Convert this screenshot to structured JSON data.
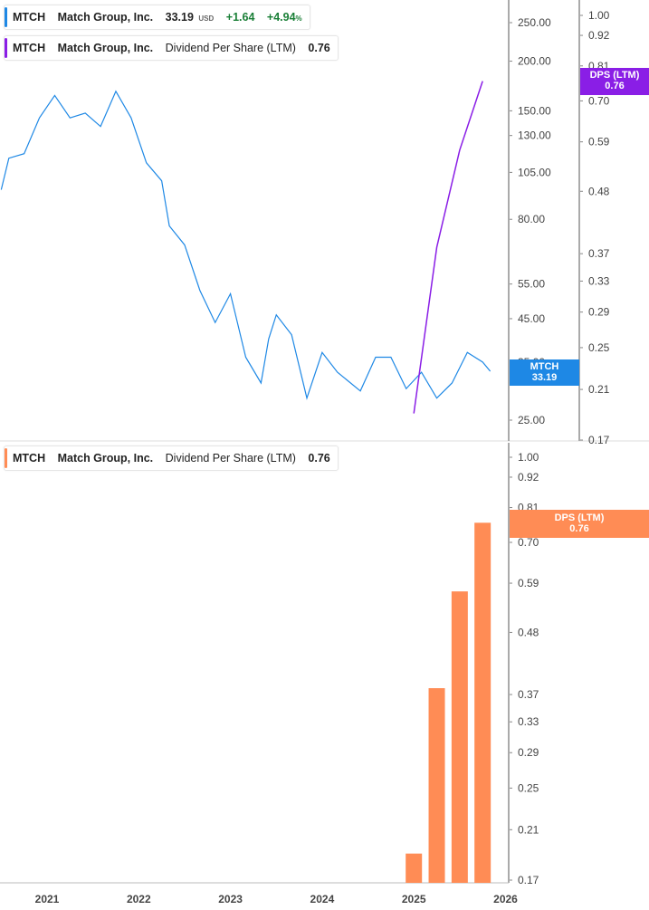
{
  "legend_price": {
    "ticker": "MTCH",
    "company": "Match Group, Inc.",
    "price": "33.19",
    "currency": "USD",
    "change": "+1.64",
    "change_pct": "+4.94",
    "pct_sign": "%"
  },
  "legend_dps_top": {
    "ticker": "MTCH",
    "company": "Match Group, Inc.",
    "metric": "Dividend Per Share (LTM)",
    "value": "0.76"
  },
  "legend_dps_bottom": {
    "ticker": "MTCH",
    "company": "Match Group, Inc.",
    "metric": "Dividend Per Share (LTM)",
    "value": "0.76"
  },
  "badges": {
    "price": {
      "label": "MTCH",
      "value": "33.19"
    },
    "dps_top": {
      "label": "DPS (LTM)",
      "value": "0.76"
    },
    "dps_bottom": {
      "label": "DPS (LTM)",
      "value": "0.76"
    }
  },
  "colors": {
    "price": "#1e88e5",
    "dps_line": "#8a1ee6",
    "dps_bar": "#ff8c55"
  },
  "chart_data": [
    {
      "type": "line",
      "scale": "log",
      "panel": "top",
      "series": [
        {
          "name": "MTCH",
          "axis": "price",
          "points": [
            [
              "2020-07",
              95
            ],
            [
              "2020-08",
              114
            ],
            [
              "2020-10",
              117
            ],
            [
              "2020-12",
              144
            ],
            [
              "2021-02",
              164
            ],
            [
              "2021-04",
              144
            ],
            [
              "2021-06",
              148
            ],
            [
              "2021-08",
              137
            ],
            [
              "2021-10",
              168
            ],
            [
              "2021-12",
              144
            ],
            [
              "2022-02",
              111
            ],
            [
              "2022-04",
              100
            ],
            [
              "2022-05",
              77
            ],
            [
              "2022-07",
              69
            ],
            [
              "2022-09",
              53
            ],
            [
              "2022-11",
              44
            ],
            [
              "2023-01",
              52
            ],
            [
              "2023-03",
              36
            ],
            [
              "2023-05",
              31
            ],
            [
              "2023-06",
              40
            ],
            [
              "2023-07",
              46
            ],
            [
              "2023-09",
              41
            ],
            [
              "2023-11",
              28.4
            ],
            [
              "2024-01",
              37
            ],
            [
              "2024-03",
              33
            ],
            [
              "2024-06",
              29.6
            ],
            [
              "2024-08",
              36
            ],
            [
              "2024-10",
              36
            ],
            [
              "2024-12",
              30
            ],
            [
              "2025-02",
              33
            ],
            [
              "2025-04",
              28.4
            ],
            [
              "2025-06",
              31
            ],
            [
              "2025-08",
              37
            ],
            [
              "2025-10",
              35
            ],
            [
              "2025-11",
              33.19
            ]
          ]
        },
        {
          "name": "DPS (LTM)",
          "axis": "dps",
          "points": [
            [
              "2025-01",
              0.19
            ],
            [
              "2025-04",
              0.38
            ],
            [
              "2025-07",
              0.57
            ],
            [
              "2025-10",
              0.76
            ]
          ]
        }
      ],
      "price_ticks": [
        "250.00",
        "200.00",
        "150.00",
        "130.00",
        "105.00",
        "80.00",
        "55.00",
        "45.00",
        "35.00",
        "25.00"
      ],
      "dps_ticks": [
        "1.00",
        "0.92",
        "0.81",
        "0.70",
        "0.59",
        "0.48",
        "0.37",
        "0.33",
        "0.29",
        "0.25",
        "0.21",
        "0.17"
      ],
      "price_range": [
        25,
        250
      ],
      "dps_range": [
        0.17,
        1.0
      ]
    },
    {
      "type": "bar",
      "scale": "log",
      "panel": "bottom",
      "categories": [
        "2025-01",
        "2025-04",
        "2025-07",
        "2025-10"
      ],
      "values": [
        0.19,
        0.38,
        0.57,
        0.76
      ],
      "ticks": [
        "1.00",
        "0.92",
        "0.81",
        "0.70",
        "0.59",
        "0.48",
        "0.37",
        "0.33",
        "0.29",
        "0.25",
        "0.21",
        "0.17"
      ],
      "ylim": [
        0.17,
        1.0
      ]
    }
  ],
  "x_axis": {
    "labels": [
      "2021",
      "2022",
      "2023",
      "2024",
      "2025",
      "2026"
    ]
  }
}
